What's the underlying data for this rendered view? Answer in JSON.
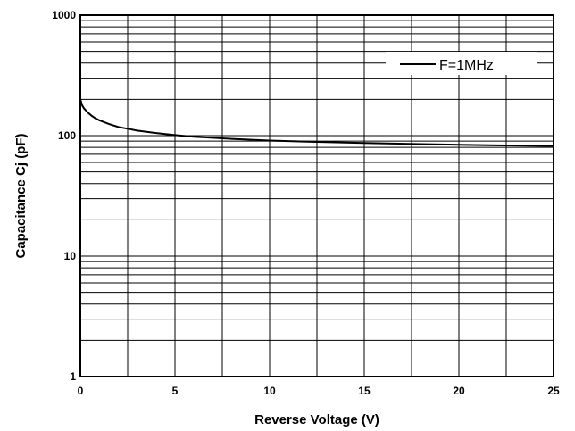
{
  "chart_data": {
    "type": "line",
    "xlabel": "Reverse Voltage (V)",
    "ylabel": "Capacitance Cj (pF)",
    "xlim": [
      0,
      25
    ],
    "ylim": [
      1,
      1000
    ],
    "yscale": "log",
    "x_ticks": [
      "0",
      "5",
      "10",
      "15",
      "20",
      "25"
    ],
    "y_ticks": [
      "1",
      "10",
      "100",
      "1000"
    ],
    "grid": true,
    "legend_position": "top-right",
    "series": [
      {
        "name": "F=1MHz",
        "x": [
          0,
          0.1,
          0.2,
          0.4,
          0.6,
          0.8,
          1,
          1.5,
          2,
          2.5,
          3,
          4,
          5,
          6,
          7,
          8,
          10,
          12,
          15,
          18,
          20,
          22,
          25
        ],
        "y": [
          200,
          178,
          168,
          155,
          146,
          139,
          134,
          125,
          118,
          114,
          110,
          105,
          101,
          98,
          96,
          94,
          91,
          89,
          87,
          85,
          84,
          83,
          82
        ]
      }
    ]
  }
}
